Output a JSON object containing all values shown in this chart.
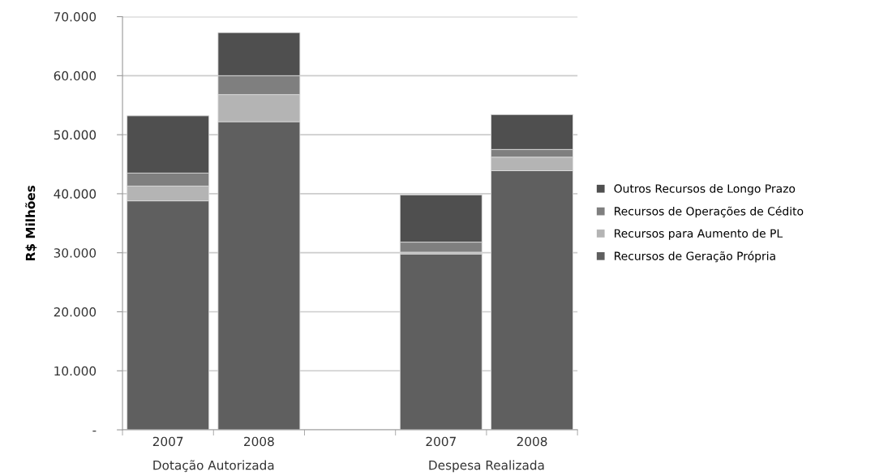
{
  "chart_data": {
    "type": "bar",
    "stacked": true,
    "ylabel": "R$ Milhões",
    "categories": [
      "2007",
      "2008",
      null,
      "2007",
      "2008"
    ],
    "series": [
      {
        "name": "Recursos de Geração Própria",
        "color": "#5f5f5f",
        "values": [
          38800,
          52200,
          null,
          29800,
          43900
        ]
      },
      {
        "name": "Recursos para Aumento de PL",
        "color": "#b4b4b4",
        "values": [
          2500,
          4600,
          null,
          300,
          2300
        ]
      },
      {
        "name": "Recursos de Operações de Cédito",
        "color": "#7f7f7f",
        "values": [
          2200,
          3200,
          null,
          1700,
          1300
        ]
      },
      {
        "name": "Outros Recursos de Longo Prazo",
        "color": "#4f4f4f",
        "values": [
          9700,
          7300,
          null,
          8000,
          5900
        ]
      }
    ],
    "ylim": [
      0,
      70000
    ],
    "yticks": [
      {
        "value": 0,
        "label": "-"
      },
      {
        "value": 10000,
        "label": "10.000"
      },
      {
        "value": 20000,
        "label": "20.000"
      },
      {
        "value": 30000,
        "label": "30.000"
      },
      {
        "value": 40000,
        "label": "40.000"
      },
      {
        "value": 50000,
        "label": "50.000"
      },
      {
        "value": 60000,
        "label": "60.000"
      },
      {
        "value": 70000,
        "label": "70.000"
      }
    ],
    "grid": "y",
    "legend": "right",
    "annotations": [
      "Dotação Autorizada",
      "Despesa Realizada"
    ]
  }
}
